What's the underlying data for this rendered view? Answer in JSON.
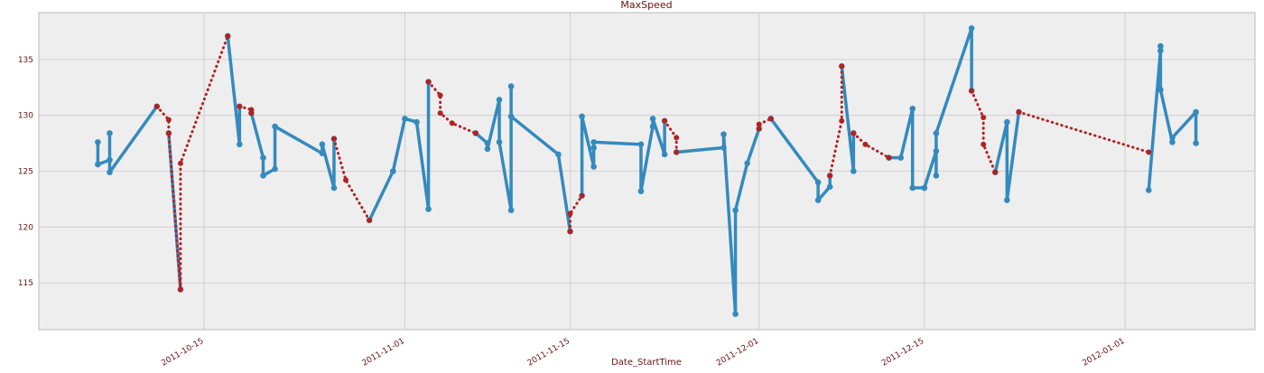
{
  "chart_data": {
    "type": "line",
    "title": "MaxSpeed",
    "xlabel": "Date_StartTime",
    "x": [
      "2011-10-06",
      "2011-10-06",
      "2011-10-07",
      "2011-10-07",
      "2011-10-07",
      "2011-10-11",
      "2011-10-12",
      "2011-10-12",
      "2011-10-13",
      "2011-10-13",
      "2011-10-17",
      "2011-10-18",
      "2011-10-18",
      "2011-10-19",
      "2011-10-19",
      "2011-10-20",
      "2011-10-20",
      "2011-10-21",
      "2011-10-21",
      "2011-10-25",
      "2011-10-25",
      "2011-10-26",
      "2011-10-26",
      "2011-10-27",
      "2011-10-29",
      "2011-10-31",
      "2011-10-31",
      "2011-11-01",
      "2011-11-02",
      "2011-11-03",
      "2011-11-03",
      "2011-11-04",
      "2011-11-04",
      "2011-11-05",
      "2011-11-07",
      "2011-11-08",
      "2011-11-08",
      "2011-11-09",
      "2011-11-09",
      "2011-11-10",
      "2011-11-10",
      "2011-11-10",
      "2011-11-14",
      "2011-11-15",
      "2011-11-15",
      "2011-11-16",
      "2011-11-16",
      "2011-11-17",
      "2011-11-17",
      "2011-11-17",
      "2011-11-21",
      "2011-11-21",
      "2011-11-22",
      "2011-11-22",
      "2011-11-23",
      "2011-11-23",
      "2011-11-24",
      "2011-11-24",
      "2011-11-28",
      "2011-11-28",
      "2011-11-29",
      "2011-11-29",
      "2011-11-30",
      "2011-12-01",
      "2011-12-01",
      "2011-12-02",
      "2011-12-06",
      "2011-12-06",
      "2011-12-07",
      "2011-12-07",
      "2011-12-08",
      "2011-12-08",
      "2011-12-09",
      "2011-12-09",
      "2011-12-10",
      "2011-12-12",
      "2011-12-13",
      "2011-12-14",
      "2011-12-14",
      "2011-12-15",
      "2011-12-15",
      "2011-12-16",
      "2011-12-16",
      "2011-12-16",
      "2011-12-19",
      "2011-12-19",
      "2011-12-20",
      "2011-12-20",
      "2011-12-21",
      "2011-12-22",
      "2011-12-22",
      "2011-12-23",
      "2012-01-03",
      "2012-01-03",
      "2012-01-04",
      "2012-01-04",
      "2012-01-04",
      "2012-01-05",
      "2012-01-05",
      "2012-01-07",
      "2012-01-07"
    ],
    "series": [
      {
        "color": "#348abd",
        "style": "solid",
        "values": [
          127.6,
          125.6,
          126.0,
          128.4,
          124.9,
          130.8,
          null,
          128.4,
          114.4,
          null,
          137.1,
          127.4,
          130.8,
          null,
          130.2,
          126.2,
          124.6,
          125.2,
          129.0,
          126.6,
          127.4,
          123.5,
          127.9,
          null,
          120.6,
          125.0,
          125.0,
          129.7,
          129.4,
          121.6,
          133.0,
          null,
          null,
          null,
          128.4,
          127.5,
          127.0,
          131.4,
          127.6,
          121.5,
          132.6,
          129.9,
          126.5,
          119.6,
          null,
          122.8,
          129.9,
          125.4,
          127.1,
          127.6,
          127.4,
          123.2,
          129.0,
          129.7,
          126.5,
          129.5,
          null,
          126.7,
          127.1,
          128.3,
          112.2,
          121.5,
          125.7,
          128.8,
          null,
          129.7,
          124.0,
          122.4,
          123.6,
          124.6,
          null,
          134.4,
          125.0,
          128.4,
          null,
          126.2,
          126.2,
          130.6,
          123.5,
          123.5,
          123.5,
          126.8,
          124.6,
          128.4,
          137.8,
          132.2,
          null,
          null,
          124.9,
          129.4,
          122.4,
          130.3,
          null,
          123.3,
          135.8,
          136.2,
          132.3,
          127.6,
          128.0,
          130.3,
          127.5
        ]
      },
      {
        "color": "#b22222",
        "style": "dotted",
        "values": [
          null,
          null,
          null,
          null,
          null,
          130.8,
          129.6,
          128.4,
          114.4,
          125.7,
          137.1,
          null,
          130.8,
          130.5,
          130.2,
          null,
          null,
          null,
          null,
          null,
          null,
          null,
          127.9,
          124.2,
          120.6,
          null,
          null,
          null,
          null,
          null,
          133.0,
          131.8,
          130.2,
          129.3,
          128.4,
          null,
          null,
          null,
          null,
          null,
          null,
          null,
          null,
          119.6,
          121.2,
          122.8,
          null,
          null,
          null,
          null,
          null,
          null,
          null,
          null,
          null,
          129.5,
          128.0,
          126.7,
          null,
          null,
          null,
          null,
          null,
          128.8,
          129.2,
          129.7,
          null,
          null,
          null,
          124.6,
          129.5,
          134.4,
          null,
          128.4,
          127.4,
          126.2,
          null,
          null,
          null,
          null,
          null,
          null,
          null,
          null,
          null,
          132.2,
          129.8,
          127.4,
          124.9,
          null,
          null,
          130.3,
          126.7,
          null,
          null,
          null,
          null,
          null,
          null,
          null,
          null
        ]
      }
    ],
    "xlim": [
      "2011-10-01",
      "2012-01-12"
    ],
    "xticks": [
      "2011-10-15",
      "2011-11-01",
      "2011-11-15",
      "2011-12-01",
      "2011-12-15",
      "2012-01-01"
    ],
    "ylim": [
      110.8,
      139.2
    ],
    "yticks": [
      115,
      120,
      125,
      130,
      135
    ],
    "grid": true
  }
}
